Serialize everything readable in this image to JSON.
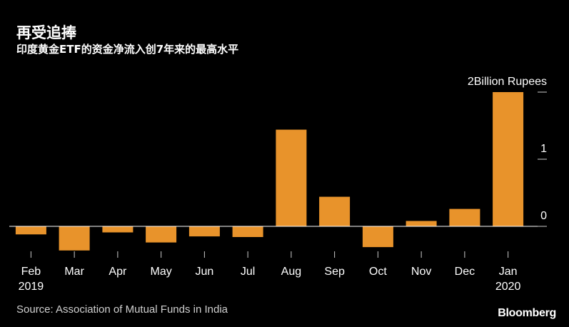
{
  "title": "再受追捧",
  "subtitle": "印度黄金ETF的资金净流入创7年来的最高水平",
  "source": "Source: Association of Mutual Funds in India",
  "brand": "Bloomberg",
  "colors": {
    "bar": "#e8932b",
    "background": "#000000",
    "text": "#ffffff",
    "axis": "#cccccc"
  },
  "chart_data": {
    "type": "bar",
    "categories": [
      "Feb",
      "Mar",
      "Apr",
      "May",
      "Jun",
      "Jul",
      "Aug",
      "Sep",
      "Oct",
      "Nov",
      "Dec",
      "Jan"
    ],
    "category_sublabels": [
      "2019",
      "",
      "",
      "",
      "",
      "",
      "",
      "",
      "",
      "",
      "",
      "2020"
    ],
    "values": [
      -0.12,
      -0.36,
      -0.09,
      -0.24,
      -0.15,
      -0.16,
      1.44,
      0.44,
      -0.31,
      0.08,
      0.26,
      2.0
    ],
    "ylabel": "Billion Rupees",
    "yticks": [
      0,
      1,
      2
    ],
    "ylim": [
      -0.5,
      2.2
    ],
    "grid": false,
    "legend": "none"
  }
}
